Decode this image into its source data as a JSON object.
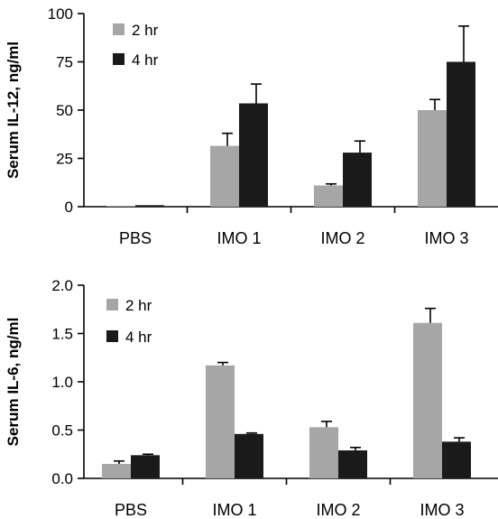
{
  "chart_data": [
    {
      "type": "bar",
      "ylabel": "Serum IL-12, ng/ml",
      "xlabel": "",
      "categories": [
        "PBS",
        "IMO 1",
        "IMO 2",
        "IMO 3"
      ],
      "ylim": [
        0,
        100
      ],
      "yticks": [
        "0",
        "25",
        "50",
        "75",
        "100"
      ],
      "legend_position": "top-left",
      "series": [
        {
          "name": "2 hr",
          "color": "#a6a6a6",
          "values": [
            0.3,
            31.5,
            11,
            50
          ],
          "errors": [
            0,
            6.5,
            0.8,
            5.5
          ]
        },
        {
          "name": "4 hr",
          "color": "#1a1a1a",
          "values": [
            0.8,
            53.5,
            28,
            75
          ],
          "errors": [
            0,
            10,
            6,
            18.5
          ]
        }
      ]
    },
    {
      "type": "bar",
      "ylabel": "Serum IL-6, ng/ml",
      "xlabel": "",
      "categories": [
        "PBS",
        "IMO 1",
        "IMO 2",
        "IMO 3"
      ],
      "ylim": [
        0,
        2.0
      ],
      "yticks": [
        "0.0",
        "0.5",
        "1.0",
        "1.5",
        "2.0"
      ],
      "legend_position": "top-left",
      "series": [
        {
          "name": "2 hr",
          "color": "#a6a6a6",
          "values": [
            0.15,
            1.17,
            0.53,
            1.61
          ],
          "errors": [
            0.03,
            0.03,
            0.06,
            0.15
          ]
        },
        {
          "name": "4 hr",
          "color": "#1a1a1a",
          "values": [
            0.24,
            0.46,
            0.29,
            0.38
          ],
          "errors": [
            0.01,
            0.01,
            0.03,
            0.04
          ]
        }
      ]
    }
  ]
}
